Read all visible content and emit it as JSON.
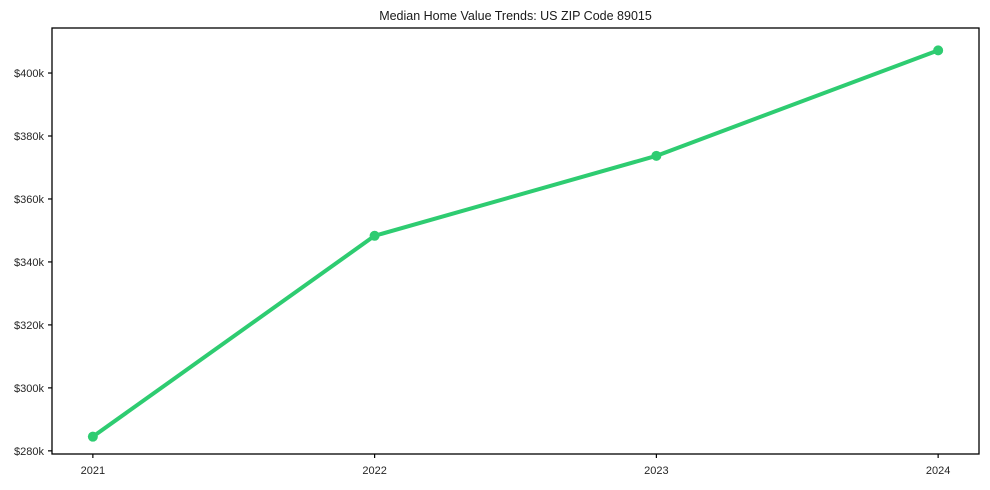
{
  "chart_data": {
    "type": "line",
    "title": "Median Home Value Trends: US ZIP Code 89015",
    "x": [
      2021,
      2022,
      2023,
      2024
    ],
    "x_tick_labels": [
      "2021",
      "2022",
      "2023",
      "2024"
    ],
    "values": [
      284500,
      348300,
      373700,
      407200
    ],
    "series": [
      {
        "name": "Median Home Value",
        "values": [
          284500,
          348300,
          373700,
          407200
        ]
      }
    ],
    "y_ticks": [
      280000,
      300000,
      320000,
      340000,
      360000,
      380000,
      400000
    ],
    "y_tick_labels": [
      "$280k",
      "$300k",
      "$320k",
      "$340k",
      "$360k",
      "$380k",
      "$400k"
    ],
    "xlim": [
      2020.855,
      2024.145
    ],
    "ylim": [
      279000,
      414300
    ],
    "xlabel": "",
    "ylabel": "",
    "grid": false,
    "legend": false,
    "line_color": "#2ecc71",
    "marker": "circle",
    "axis_color": "#000000",
    "text_color": "#262626",
    "background_color": "#ffffff"
  }
}
